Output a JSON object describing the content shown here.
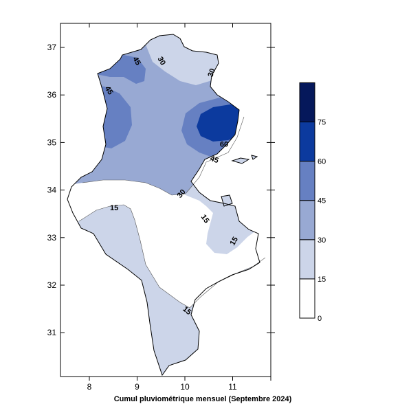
{
  "map": {
    "caption": "Cumul pluviométrique mensuel (Septembre 2024)",
    "x_ticks": [
      {
        "value": 8,
        "label": "8"
      },
      {
        "value": 9,
        "label": "9"
      },
      {
        "value": 10,
        "label": "10"
      },
      {
        "value": 11,
        "label": "11"
      }
    ],
    "y_ticks": [
      {
        "value": 37,
        "label": "37"
      },
      {
        "value": 36,
        "label": "36"
      },
      {
        "value": 35,
        "label": "35"
      },
      {
        "value": 34,
        "label": "34"
      },
      {
        "value": 33,
        "label": "33"
      },
      {
        "value": 32,
        "label": "32"
      },
      {
        "value": 31,
        "label": "31"
      }
    ],
    "contour_labels": [
      {
        "text": "45",
        "lon": 9.0,
        "lat": 36.72,
        "rot": 60
      },
      {
        "text": "30",
        "lon": 9.52,
        "lat": 36.72,
        "rot": 60
      },
      {
        "text": "30",
        "lon": 10.55,
        "lat": 36.47,
        "rot": -70
      },
      {
        "text": "45",
        "lon": 8.42,
        "lat": 36.1,
        "rot": 60
      },
      {
        "text": "60",
        "lon": 10.82,
        "lat": 34.97,
        "rot": 0
      },
      {
        "text": "45",
        "lon": 10.62,
        "lat": 34.65,
        "rot": 20
      },
      {
        "text": "30",
        "lon": 9.92,
        "lat": 33.93,
        "rot": -50
      },
      {
        "text": "15",
        "lon": 8.52,
        "lat": 33.63,
        "rot": 0
      },
      {
        "text": "15",
        "lon": 10.43,
        "lat": 33.4,
        "rot": 55
      },
      {
        "text": "15",
        "lon": 11.02,
        "lat": 32.93,
        "rot": -60
      },
      {
        "text": "15",
        "lon": 10.05,
        "lat": 31.47,
        "rot": 40
      }
    ],
    "legend": {
      "levels": [
        {
          "label": "0",
          "color": "#ffffff"
        },
        {
          "label": "15",
          "color": "#ccd5e9"
        },
        {
          "label": "30",
          "color": "#98a9d3"
        },
        {
          "label": "45",
          "color": "#6680c2"
        },
        {
          "label": "60",
          "color": "#0c3a9e"
        },
        {
          "label": "75",
          "color": "#05185b"
        }
      ],
      "top_color": "#05185b"
    },
    "colors": {
      "band_15_30": "#ccd5e9",
      "band_30_45": "#98a9d3",
      "band_45_60": "#6680c2",
      "band_60_75": "#0c3a9e",
      "below_15": "#ffffff"
    }
  }
}
